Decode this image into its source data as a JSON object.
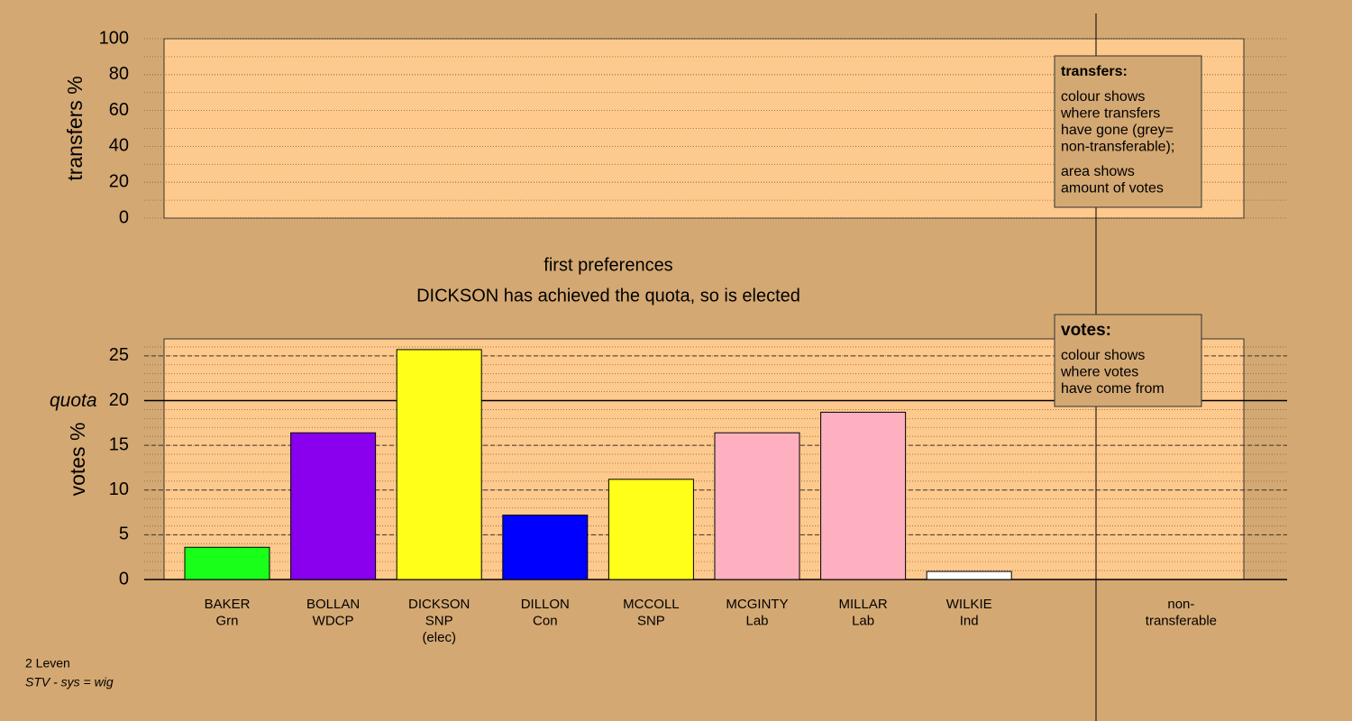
{
  "chart_data": [
    {
      "type": "bar",
      "ylabel": "transfers %",
      "ylim": [
        0,
        100
      ],
      "yticks": [
        0,
        20,
        40,
        60,
        80,
        100
      ],
      "minor_step": 10,
      "categories": [],
      "values": [],
      "note": {
        "title": "transfers:",
        "paragraphs": [
          [
            "colour shows",
            "where transfers",
            "have gone (grey=",
            "non-transferable);"
          ],
          [
            "area shows",
            "amount of votes"
          ]
        ]
      }
    },
    {
      "type": "bar",
      "title": "first preferences",
      "subtitle": "DICKSON has achieved the quota, so is elected",
      "ylabel": "votes %",
      "ylim": [
        0,
        26.9
      ],
      "yticks": [
        0,
        5,
        10,
        15,
        20,
        25
      ],
      "minor_step": 1,
      "quota": {
        "value": 20,
        "label": "quota"
      },
      "categories": [
        [
          "BAKER",
          "Grn"
        ],
        [
          "BOLLAN",
          "WDCP"
        ],
        [
          "DICKSON",
          "SNP",
          "(elec)"
        ],
        [
          "DILLON",
          "Con"
        ],
        [
          "MCCOLL",
          "SNP"
        ],
        [
          "MCGINTY",
          "Lab"
        ],
        [
          "MILLAR",
          "Lab"
        ],
        [
          "WILKIE",
          "Ind"
        ]
      ],
      "values": [
        3.6,
        16.4,
        25.7,
        7.2,
        11.2,
        16.4,
        18.7,
        0.9
      ],
      "colors": [
        "#1aff1a",
        "#8800ee",
        "#ffff1a",
        "#0000ff",
        "#ffff1a",
        "#ffb0c0",
        "#ffb0c0",
        "#ffffff"
      ],
      "extra_column_label": [
        "non-",
        "transferable"
      ],
      "note": {
        "title": "votes:",
        "paragraphs": [
          [
            "colour shows",
            "where votes",
            "have come from"
          ]
        ]
      }
    }
  ],
  "footer": [
    "2 Leven",
    "STV - sys = wig"
  ]
}
